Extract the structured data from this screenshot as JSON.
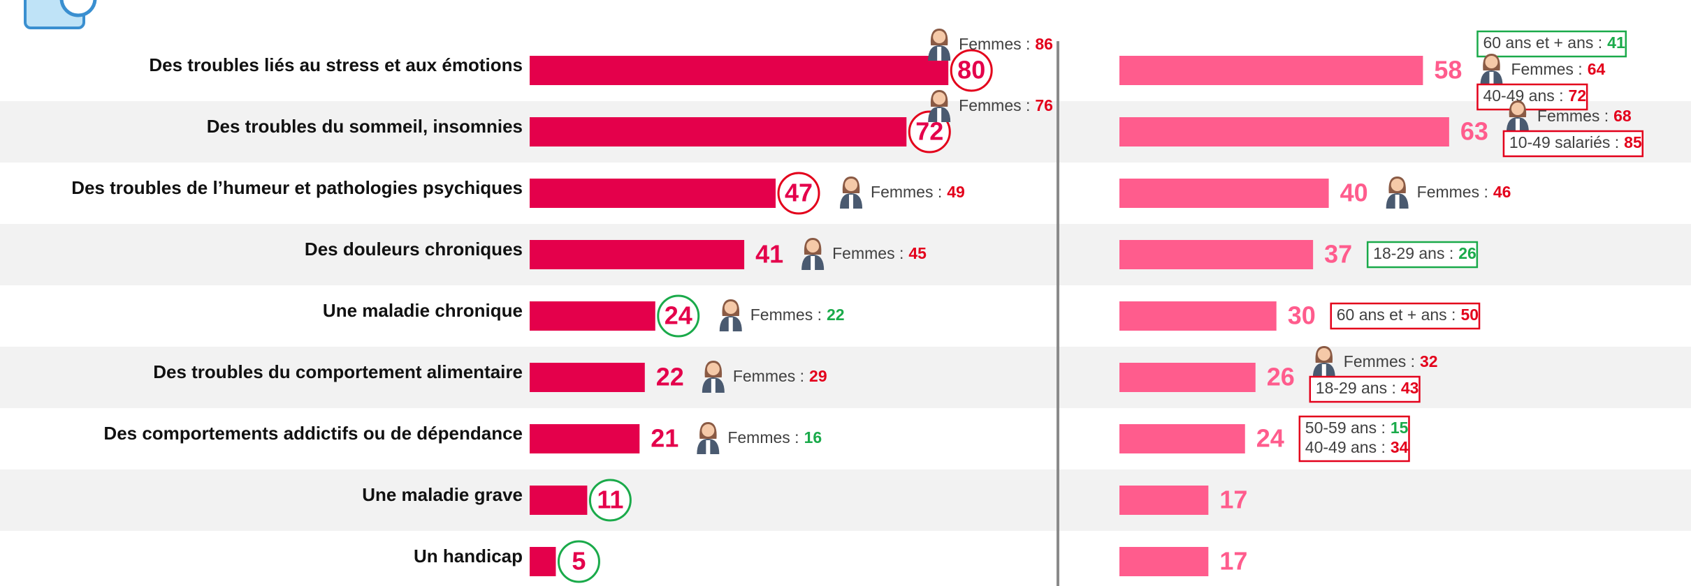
{
  "chart_data": [
    {
      "type": "bar",
      "orientation": "horizontal",
      "categories": [
        "Des troubles liés au stress et aux émotions",
        "Des troubles du sommeil, insomnies",
        "Des troubles de l’humeur et pathologies psychiques",
        "Des douleurs chroniques",
        "Une maladie chronique",
        "Des troubles du comportement alimentaire",
        "Des comportements addictifs ou de dépendance",
        "Une maladie grave",
        "Un handicap"
      ],
      "values": [
        80,
        72,
        47,
        41,
        24,
        22,
        21,
        11,
        5
      ],
      "color": "#e4004b",
      "value_circles": [
        "#e3001b",
        "#e3001b",
        "#e3001b",
        null,
        "#1aaa4a",
        null,
        null,
        "#1aaa4a",
        "#1aaa4a"
      ],
      "notes": [
        [
          {
            "icon": true,
            "lines": [
              {
                "label": "Femmes :",
                "value": 86,
                "color": "#e3001b"
              }
            ]
          }
        ],
        [
          {
            "icon": true,
            "lines": [
              {
                "label": "Femmes :",
                "value": 76,
                "color": "#e3001b"
              }
            ]
          }
        ],
        [
          {
            "icon": true,
            "lines": [
              {
                "label": "Femmes :",
                "value": 49,
                "color": "#e3001b"
              }
            ]
          }
        ],
        [
          {
            "icon": true,
            "lines": [
              {
                "label": "Femmes :",
                "value": 45,
                "color": "#e3001b"
              }
            ]
          }
        ],
        [
          {
            "icon": true,
            "lines": [
              {
                "label": "Femmes :",
                "value": 22,
                "color": "#1aaa4a"
              }
            ]
          }
        ],
        [
          {
            "icon": true,
            "lines": [
              {
                "label": "Femmes :",
                "value": 29,
                "color": "#e3001b"
              }
            ]
          }
        ],
        [
          {
            "icon": true,
            "lines": [
              {
                "label": "Femmes :",
                "value": 16,
                "color": "#1aaa4a"
              }
            ]
          }
        ],
        [],
        []
      ]
    },
    {
      "type": "bar",
      "orientation": "horizontal",
      "values": [
        58,
        63,
        40,
        37,
        30,
        26,
        24,
        17,
        17
      ],
      "color": "#ff5c8d",
      "notes": [
        [
          {
            "box": "#1aaa4a",
            "lines": [
              {
                "label": "60 ans et + ans :",
                "value": 41,
                "color": "#1aaa4a"
              }
            ]
          },
          {
            "icon": true,
            "lines": [
              {
                "label": "Femmes :",
                "value": 64,
                "color": "#e3001b"
              }
            ]
          },
          {
            "box": "#e3001b",
            "lines": [
              {
                "label": "40-49 ans :",
                "value": 72,
                "color": "#e3001b"
              }
            ]
          }
        ],
        [
          {
            "icon": true,
            "lines": [
              {
                "label": "Femmes :",
                "value": 68,
                "color": "#e3001b"
              }
            ]
          },
          {
            "box": "#e3001b",
            "lines": [
              {
                "label": "10-49 salariés :",
                "value": 85,
                "color": "#e3001b"
              }
            ]
          }
        ],
        [
          {
            "icon": true,
            "lines": [
              {
                "label": "Femmes :",
                "value": 46,
                "color": "#e3001b"
              }
            ]
          }
        ],
        [
          {
            "box": "#1aaa4a",
            "lines": [
              {
                "label": "18-29 ans :",
                "value": 26,
                "color": "#1aaa4a"
              }
            ]
          }
        ],
        [
          {
            "box": "#e3001b",
            "lines": [
              {
                "label": "60 ans et + ans :",
                "value": 50,
                "color": "#e3001b"
              }
            ]
          }
        ],
        [
          {
            "icon": true,
            "lines": [
              {
                "label": "Femmes :",
                "value": 32,
                "color": "#e3001b"
              }
            ]
          },
          {
            "box": "#e3001b",
            "lines": [
              {
                "label": "18-29 ans :",
                "value": 43,
                "color": "#e3001b"
              }
            ]
          }
        ],
        [
          {
            "box": "#e3001b",
            "lines": [
              {
                "label": "50-59 ans :",
                "value": 15,
                "color": "#1aaa4a"
              },
              {
                "label": "40-49 ans :",
                "value": 34,
                "color": "#e3001b"
              }
            ]
          }
        ],
        [],
        []
      ]
    }
  ]
}
